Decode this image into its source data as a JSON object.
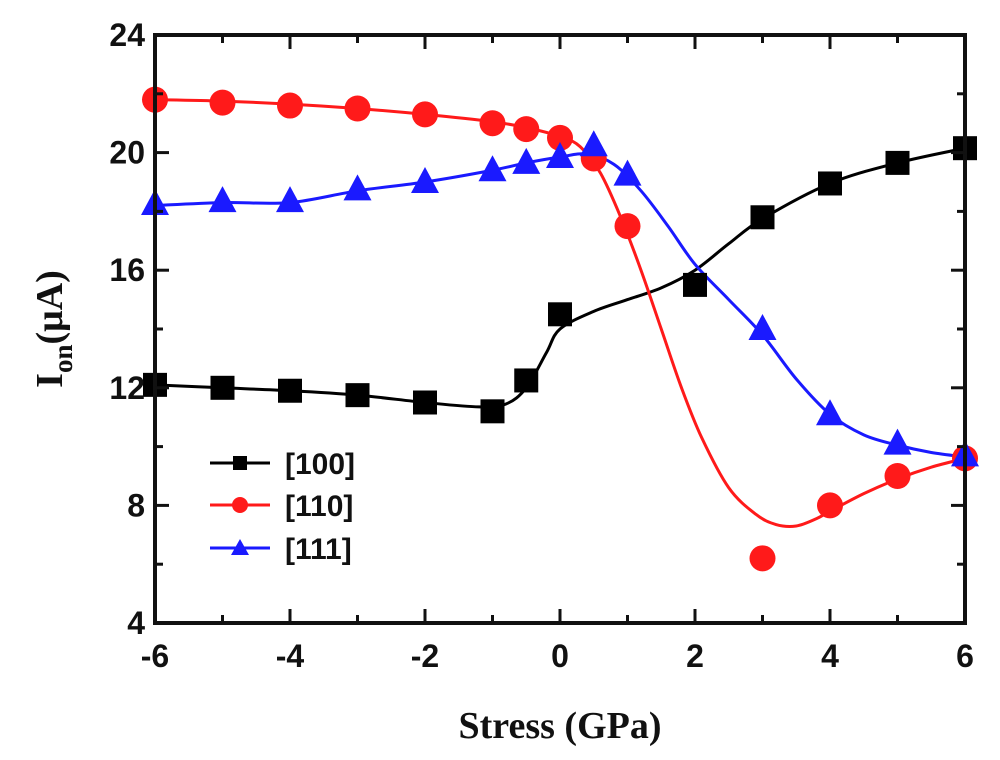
{
  "chart_data": {
    "type": "line",
    "xlabel": "Stress (GPa)",
    "ylabel": "I_on(μA)",
    "ylabel_main": "I",
    "ylabel_sub": "on",
    "ylabel_rest": "(μA)",
    "xlim": [
      -6,
      6
    ],
    "ylim": [
      4,
      24
    ],
    "xticks": [
      -6,
      -4,
      -2,
      0,
      2,
      4,
      6
    ],
    "xtick_labels": [
      "-6",
      "-4",
      "-2",
      "0",
      "2",
      "4",
      "6"
    ],
    "yticks": [
      4,
      8,
      12,
      16,
      20,
      24
    ],
    "ytick_labels": [
      "4",
      "8",
      "12",
      "16",
      "20",
      "24"
    ],
    "grid": false,
    "legend_position": "bottom-left",
    "series": [
      {
        "name": "[100]",
        "color": "#000000",
        "marker": "square",
        "points": [
          {
            "x": -6,
            "y": 12.1
          },
          {
            "x": -5,
            "y": 12.0
          },
          {
            "x": -4,
            "y": 11.9
          },
          {
            "x": -3,
            "y": 11.75
          },
          {
            "x": -2,
            "y": 11.5
          },
          {
            "x": -1,
            "y": 11.2
          },
          {
            "x": -0.5,
            "y": 12.25
          },
          {
            "x": 0,
            "y": 14.5
          },
          {
            "x": 2,
            "y": 15.5
          },
          {
            "x": 3,
            "y": 17.8
          },
          {
            "x": 4,
            "y": 18.95
          },
          {
            "x": 5,
            "y": 19.65
          },
          {
            "x": 6,
            "y": 20.15
          }
        ],
        "curve": [
          {
            "x": -6,
            "y": 12.1
          },
          {
            "x": -5,
            "y": 12.0
          },
          {
            "x": -4,
            "y": 11.9
          },
          {
            "x": -3,
            "y": 11.75
          },
          {
            "x": -2,
            "y": 11.5
          },
          {
            "x": -1.2,
            "y": 11.35
          },
          {
            "x": -0.8,
            "y": 11.45
          },
          {
            "x": -0.5,
            "y": 12.0
          },
          {
            "x": -0.2,
            "y": 13.2
          },
          {
            "x": 0,
            "y": 14.0
          },
          {
            "x": 0.5,
            "y": 14.6
          },
          {
            "x": 1,
            "y": 15.0
          },
          {
            "x": 1.5,
            "y": 15.4
          },
          {
            "x": 2,
            "y": 16.0
          },
          {
            "x": 2.5,
            "y": 16.9
          },
          {
            "x": 3,
            "y": 17.75
          },
          {
            "x": 4,
            "y": 18.95
          },
          {
            "x": 5,
            "y": 19.65
          },
          {
            "x": 6,
            "y": 20.15
          }
        ]
      },
      {
        "name": "[110]",
        "color": "#ff1a1a",
        "marker": "circle",
        "points": [
          {
            "x": -6,
            "y": 21.8
          },
          {
            "x": -5,
            "y": 21.7
          },
          {
            "x": -4,
            "y": 21.6
          },
          {
            "x": -3,
            "y": 21.5
          },
          {
            "x": -2,
            "y": 21.3
          },
          {
            "x": -1,
            "y": 21.0
          },
          {
            "x": -0.5,
            "y": 20.8
          },
          {
            "x": 0,
            "y": 20.5
          },
          {
            "x": 0.5,
            "y": 19.8
          },
          {
            "x": 1,
            "y": 17.5
          },
          {
            "x": 3,
            "y": 6.2
          },
          {
            "x": 4,
            "y": 8.0
          },
          {
            "x": 5,
            "y": 9.0
          },
          {
            "x": 6,
            "y": 9.6
          }
        ],
        "curve": [
          {
            "x": -6,
            "y": 21.8
          },
          {
            "x": -5,
            "y": 21.75
          },
          {
            "x": -4,
            "y": 21.65
          },
          {
            "x": -3,
            "y": 21.5
          },
          {
            "x": -2,
            "y": 21.3
          },
          {
            "x": -1,
            "y": 21.05
          },
          {
            "x": -0.5,
            "y": 20.85
          },
          {
            "x": 0,
            "y": 20.55
          },
          {
            "x": 0.3,
            "y": 20.2
          },
          {
            "x": 0.6,
            "y": 19.3
          },
          {
            "x": 0.9,
            "y": 17.8
          },
          {
            "x": 1.2,
            "y": 16.0
          },
          {
            "x": 1.5,
            "y": 14.0
          },
          {
            "x": 1.8,
            "y": 12.0
          },
          {
            "x": 2.1,
            "y": 10.3
          },
          {
            "x": 2.5,
            "y": 8.6
          },
          {
            "x": 2.9,
            "y": 7.7
          },
          {
            "x": 3.2,
            "y": 7.35
          },
          {
            "x": 3.5,
            "y": 7.3
          },
          {
            "x": 3.8,
            "y": 7.55
          },
          {
            "x": 4,
            "y": 7.8
          },
          {
            "x": 4.5,
            "y": 8.4
          },
          {
            "x": 5,
            "y": 8.9
          },
          {
            "x": 5.5,
            "y": 9.3
          },
          {
            "x": 6,
            "y": 9.6
          }
        ]
      },
      {
        "name": "[111]",
        "color": "#1a1aff",
        "marker": "triangle",
        "points": [
          {
            "x": -6,
            "y": 18.25
          },
          {
            "x": -5,
            "y": 18.35
          },
          {
            "x": -4,
            "y": 18.35
          },
          {
            "x": -3,
            "y": 18.75
          },
          {
            "x": -2,
            "y": 19.0
          },
          {
            "x": -1,
            "y": 19.4
          },
          {
            "x": -0.5,
            "y": 19.65
          },
          {
            "x": 0,
            "y": 19.85
          },
          {
            "x": 0.5,
            "y": 20.25
          },
          {
            "x": 1,
            "y": 19.25
          },
          {
            "x": 3,
            "y": 14.0
          },
          {
            "x": 4,
            "y": 11.1
          },
          {
            "x": 5,
            "y": 10.1
          },
          {
            "x": 6,
            "y": 9.7
          }
        ],
        "curve": [
          {
            "x": -6,
            "y": 18.2
          },
          {
            "x": -5,
            "y": 18.3
          },
          {
            "x": -4,
            "y": 18.3
          },
          {
            "x": -3,
            "y": 18.7
          },
          {
            "x": -2,
            "y": 19.0
          },
          {
            "x": -1,
            "y": 19.4
          },
          {
            "x": -0.5,
            "y": 19.65
          },
          {
            "x": 0,
            "y": 19.85
          },
          {
            "x": 0.4,
            "y": 19.95
          },
          {
            "x": 0.8,
            "y": 19.6
          },
          {
            "x": 1.2,
            "y": 18.7
          },
          {
            "x": 1.6,
            "y": 17.5
          },
          {
            "x": 2,
            "y": 16.2
          },
          {
            "x": 2.5,
            "y": 15.0
          },
          {
            "x": 3,
            "y": 13.8
          },
          {
            "x": 3.5,
            "y": 12.3
          },
          {
            "x": 4,
            "y": 11.1
          },
          {
            "x": 4.5,
            "y": 10.4
          },
          {
            "x": 5,
            "y": 10.05
          },
          {
            "x": 5.5,
            "y": 9.8
          },
          {
            "x": 6,
            "y": 9.65
          }
        ]
      }
    ]
  }
}
